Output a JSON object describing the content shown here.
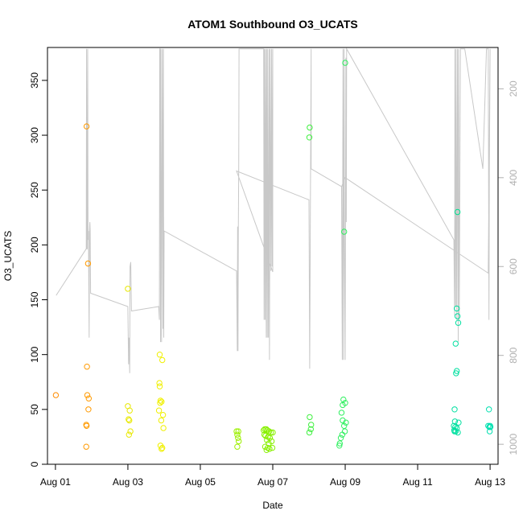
{
  "chart_data": {
    "type": "scatter",
    "title": "ATOM1 Southbound O3_UCATS",
    "xlabel": "Date",
    "ylabel": "O3_UCATS",
    "x_tick_labels": [
      "Aug 01",
      "Aug 03",
      "Aug 05",
      "Aug 07",
      "Aug 09",
      "Aug 11",
      "Aug 13"
    ],
    "x_tick_days": [
      1,
      3,
      5,
      7,
      9,
      11,
      13
    ],
    "xlim": [
      0.78,
      13.22
    ],
    "ylim": [
      0,
      380
    ],
    "y_ticks": [
      0,
      50,
      100,
      150,
      200,
      250,
      300,
      350
    ],
    "right_axis": {
      "ticks": [
        200,
        400,
        600,
        800,
        1000
      ],
      "range_top": 107,
      "range_bottom": 1045,
      "color": "#b0b0b0"
    },
    "grid": false,
    "legend": "none",
    "background_line_color": "#c8c8c8",
    "background_line": [
      [
        1.02,
        665
      ],
      [
        1.85,
        560
      ],
      [
        1.86,
        110
      ],
      [
        1.87,
        560
      ],
      [
        1.88,
        560
      ],
      [
        1.89,
        110
      ],
      [
        1.9,
        540
      ],
      [
        1.91,
        520
      ],
      [
        1.93,
        760
      ],
      [
        1.94,
        520
      ],
      [
        1.95,
        500
      ],
      [
        1.96,
        520
      ],
      [
        1.97,
        660
      ],
      [
        3.0,
        690
      ],
      [
        3.02,
        820
      ],
      [
        3.03,
        760
      ],
      [
        3.05,
        840
      ],
      [
        3.06,
        600
      ],
      [
        3.08,
        590
      ],
      [
        3.1,
        700
      ],
      [
        3.85,
        690
      ],
      [
        3.87,
        720
      ],
      [
        3.88,
        110
      ],
      [
        3.89,
        110
      ],
      [
        3.9,
        770
      ],
      [
        3.91,
        110
      ],
      [
        3.93,
        770
      ],
      [
        3.95,
        110
      ],
      [
        3.97,
        740
      ],
      [
        3.98,
        110
      ],
      [
        3.99,
        760
      ],
      [
        4.0,
        520
      ],
      [
        6.0,
        610
      ],
      [
        6.02,
        790
      ],
      [
        6.03,
        510
      ],
      [
        6.04,
        790
      ],
      [
        6.05,
        520
      ],
      [
        6.06,
        380
      ],
      [
        6.07,
        110
      ],
      [
        6.75,
        110
      ],
      [
        6.76,
        720
      ],
      [
        6.77,
        110
      ],
      [
        6.79,
        720
      ],
      [
        6.8,
        110
      ],
      [
        6.82,
        760
      ],
      [
        6.83,
        110
      ],
      [
        6.85,
        760
      ],
      [
        6.86,
        110
      ],
      [
        6.88,
        760
      ],
      [
        6.9,
        110
      ],
      [
        6.91,
        810
      ],
      [
        6.93,
        110
      ],
      [
        6.95,
        610
      ],
      [
        6.97,
        110
      ],
      [
        6.98,
        600
      ],
      [
        7.0,
        110
      ],
      [
        7.0,
        612
      ],
      [
        6.0,
        385
      ],
      [
        8.0,
        450
      ],
      [
        8.02,
        830
      ],
      [
        8.04,
        450
      ],
      [
        8.06,
        110
      ],
      [
        8.06,
        380
      ],
      [
        8.9,
        420
      ],
      [
        8.92,
        810
      ],
      [
        8.94,
        110
      ],
      [
        8.95,
        810
      ],
      [
        8.97,
        110
      ],
      [
        8.98,
        520
      ],
      [
        9.0,
        810
      ],
      [
        9.02,
        130
      ],
      [
        9.03,
        500
      ],
      [
        9.04,
        110
      ],
      [
        12.0,
        540
      ],
      [
        12.02,
        710
      ],
      [
        12.03,
        110
      ],
      [
        12.05,
        690
      ],
      [
        12.06,
        110
      ],
      [
        12.08,
        720
      ],
      [
        12.1,
        110
      ],
      [
        12.12,
        770
      ],
      [
        12.13,
        110
      ],
      [
        12.15,
        720
      ],
      [
        12.18,
        110
      ],
      [
        12.3,
        110
      ],
      [
        12.8,
        380
      ],
      [
        12.9,
        110
      ],
      [
        12.95,
        110
      ],
      [
        12.97,
        720
      ],
      [
        12.98,
        380
      ],
      [
        13.0,
        110
      ],
      [
        12.95,
        615
      ],
      [
        9.0,
        400
      ],
      [
        8.9,
        420
      ]
    ],
    "points": [
      {
        "x": 1.01,
        "y": 63,
        "color": "#ff8c00"
      },
      {
        "x": 1.86,
        "y": 308,
        "color": "#ff9a00"
      },
      {
        "x": 1.9,
        "y": 183,
        "color": "#ff9a00"
      },
      {
        "x": 1.87,
        "y": 89,
        "color": "#ff9a00"
      },
      {
        "x": 1.88,
        "y": 63,
        "color": "#ff9a00"
      },
      {
        "x": 1.92,
        "y": 60,
        "color": "#ff9a00"
      },
      {
        "x": 1.91,
        "y": 50,
        "color": "#ff9a00"
      },
      {
        "x": 1.85,
        "y": 36,
        "color": "#ff9a00"
      },
      {
        "x": 1.86,
        "y": 35,
        "color": "#ff9a00"
      },
      {
        "x": 1.85,
        "y": 16,
        "color": "#ff9a00"
      },
      {
        "x": 3.0,
        "y": 160,
        "color": "#e8e800"
      },
      {
        "x": 3.0,
        "y": 53,
        "color": "#e8e800"
      },
      {
        "x": 3.05,
        "y": 49,
        "color": "#e8e800"
      },
      {
        "x": 3.02,
        "y": 41,
        "color": "#e8e800"
      },
      {
        "x": 3.04,
        "y": 40,
        "color": "#e8e800"
      },
      {
        "x": 3.07,
        "y": 30,
        "color": "#e8e800"
      },
      {
        "x": 3.03,
        "y": 27,
        "color": "#e8e800"
      },
      {
        "x": 3.88,
        "y": 100,
        "color": "#f0f000"
      },
      {
        "x": 3.95,
        "y": 95,
        "color": "#f0f000"
      },
      {
        "x": 3.87,
        "y": 74,
        "color": "#f0f000"
      },
      {
        "x": 3.88,
        "y": 71,
        "color": "#f0f000"
      },
      {
        "x": 3.9,
        "y": 58,
        "color": "#f0f000"
      },
      {
        "x": 3.93,
        "y": 57,
        "color": "#f0f000"
      },
      {
        "x": 3.89,
        "y": 56,
        "color": "#f0f000"
      },
      {
        "x": 3.86,
        "y": 49,
        "color": "#f0f000"
      },
      {
        "x": 3.97,
        "y": 45,
        "color": "#f0f000"
      },
      {
        "x": 3.92,
        "y": 40,
        "color": "#f0f000"
      },
      {
        "x": 3.98,
        "y": 33,
        "color": "#f0f000"
      },
      {
        "x": 3.9,
        "y": 17,
        "color": "#f0f000"
      },
      {
        "x": 3.95,
        "y": 15,
        "color": "#f0f000"
      },
      {
        "x": 3.93,
        "y": 14,
        "color": "#f0f000"
      },
      {
        "x": 6.0,
        "y": 30,
        "color": "#9cf000"
      },
      {
        "x": 6.05,
        "y": 30,
        "color": "#9cf000"
      },
      {
        "x": 6.02,
        "y": 27,
        "color": "#9cf000"
      },
      {
        "x": 6.04,
        "y": 24,
        "color": "#9cf000"
      },
      {
        "x": 6.06,
        "y": 21,
        "color": "#9cf000"
      },
      {
        "x": 6.02,
        "y": 16,
        "color": "#9cf000"
      },
      {
        "x": 6.75,
        "y": 31,
        "color": "#88f000"
      },
      {
        "x": 6.78,
        "y": 32,
        "color": "#88f000"
      },
      {
        "x": 6.82,
        "y": 32,
        "color": "#88f000"
      },
      {
        "x": 6.85,
        "y": 31,
        "color": "#88f000"
      },
      {
        "x": 6.9,
        "y": 30,
        "color": "#88f000"
      },
      {
        "x": 6.95,
        "y": 29,
        "color": "#88f000"
      },
      {
        "x": 7.0,
        "y": 29,
        "color": "#88f000"
      },
      {
        "x": 6.77,
        "y": 27,
        "color": "#88f000"
      },
      {
        "x": 6.8,
        "y": 26,
        "color": "#88f000"
      },
      {
        "x": 6.87,
        "y": 25,
        "color": "#88f000"
      },
      {
        "x": 6.92,
        "y": 24,
        "color": "#88f000"
      },
      {
        "x": 6.84,
        "y": 22,
        "color": "#88f000"
      },
      {
        "x": 6.97,
        "y": 21,
        "color": "#88f000"
      },
      {
        "x": 6.89,
        "y": 19,
        "color": "#88f000"
      },
      {
        "x": 6.79,
        "y": 16,
        "color": "#88f000"
      },
      {
        "x": 6.86,
        "y": 15,
        "color": "#88f000"
      },
      {
        "x": 6.91,
        "y": 14,
        "color": "#88f000"
      },
      {
        "x": 6.99,
        "y": 15,
        "color": "#88f000"
      },
      {
        "x": 6.83,
        "y": 13,
        "color": "#88f000"
      },
      {
        "x": 8.02,
        "y": 307,
        "color": "#40f040"
      },
      {
        "x": 8.01,
        "y": 298,
        "color": "#40f040"
      },
      {
        "x": 8.02,
        "y": 43,
        "color": "#40f040"
      },
      {
        "x": 8.06,
        "y": 36,
        "color": "#40f040"
      },
      {
        "x": 8.05,
        "y": 32,
        "color": "#40f040"
      },
      {
        "x": 8.01,
        "y": 29,
        "color": "#40f040"
      },
      {
        "x": 9.0,
        "y": 366,
        "color": "#30f060"
      },
      {
        "x": 8.97,
        "y": 212,
        "color": "#30f060"
      },
      {
        "x": 8.95,
        "y": 59,
        "color": "#30f060"
      },
      {
        "x": 9.0,
        "y": 56,
        "color": "#30f060"
      },
      {
        "x": 8.93,
        "y": 54,
        "color": "#30f060"
      },
      {
        "x": 8.9,
        "y": 47,
        "color": "#30f060"
      },
      {
        "x": 8.93,
        "y": 40,
        "color": "#30f060"
      },
      {
        "x": 9.02,
        "y": 38,
        "color": "#30f060"
      },
      {
        "x": 8.97,
        "y": 35,
        "color": "#30f060"
      },
      {
        "x": 8.99,
        "y": 30,
        "color": "#30f060"
      },
      {
        "x": 8.92,
        "y": 27,
        "color": "#30f060"
      },
      {
        "x": 8.88,
        "y": 24,
        "color": "#30f060"
      },
      {
        "x": 8.85,
        "y": 19,
        "color": "#30f060"
      },
      {
        "x": 8.84,
        "y": 17,
        "color": "#30f060"
      },
      {
        "x": 12.1,
        "y": 230,
        "color": "#00e090"
      },
      {
        "x": 12.08,
        "y": 142,
        "color": "#00e0a0"
      },
      {
        "x": 12.1,
        "y": 135,
        "color": "#00e0a0"
      },
      {
        "x": 12.12,
        "y": 129,
        "color": "#00e0a0"
      },
      {
        "x": 12.05,
        "y": 110,
        "color": "#00e0a0"
      },
      {
        "x": 12.08,
        "y": 85,
        "color": "#00e0a0"
      },
      {
        "x": 12.06,
        "y": 83,
        "color": "#00e0a0"
      },
      {
        "x": 12.02,
        "y": 50,
        "color": "#00e0a0"
      },
      {
        "x": 12.03,
        "y": 39,
        "color": "#00e0a0"
      },
      {
        "x": 12.13,
        "y": 38,
        "color": "#00e0a0"
      },
      {
        "x": 12.0,
        "y": 35,
        "color": "#00e0a0"
      },
      {
        "x": 12.04,
        "y": 34,
        "color": "#00e0a0"
      },
      {
        "x": 12.08,
        "y": 33,
        "color": "#00e0a0"
      },
      {
        "x": 12.01,
        "y": 31,
        "color": "#00e0a0"
      },
      {
        "x": 12.02,
        "y": 30,
        "color": "#00e0a0"
      },
      {
        "x": 12.05,
        "y": 30,
        "color": "#00e0a0"
      },
      {
        "x": 12.11,
        "y": 29,
        "color": "#00e0a0"
      },
      {
        "x": 12.97,
        "y": 50,
        "color": "#00e0b0"
      },
      {
        "x": 12.95,
        "y": 35,
        "color": "#00e0b0"
      },
      {
        "x": 12.98,
        "y": 34,
        "color": "#00e0b0"
      },
      {
        "x": 13.0,
        "y": 35,
        "color": "#00e0b0"
      },
      {
        "x": 13.01,
        "y": 34,
        "color": "#00e0b0"
      },
      {
        "x": 12.99,
        "y": 30,
        "color": "#00e0b0"
      }
    ]
  }
}
